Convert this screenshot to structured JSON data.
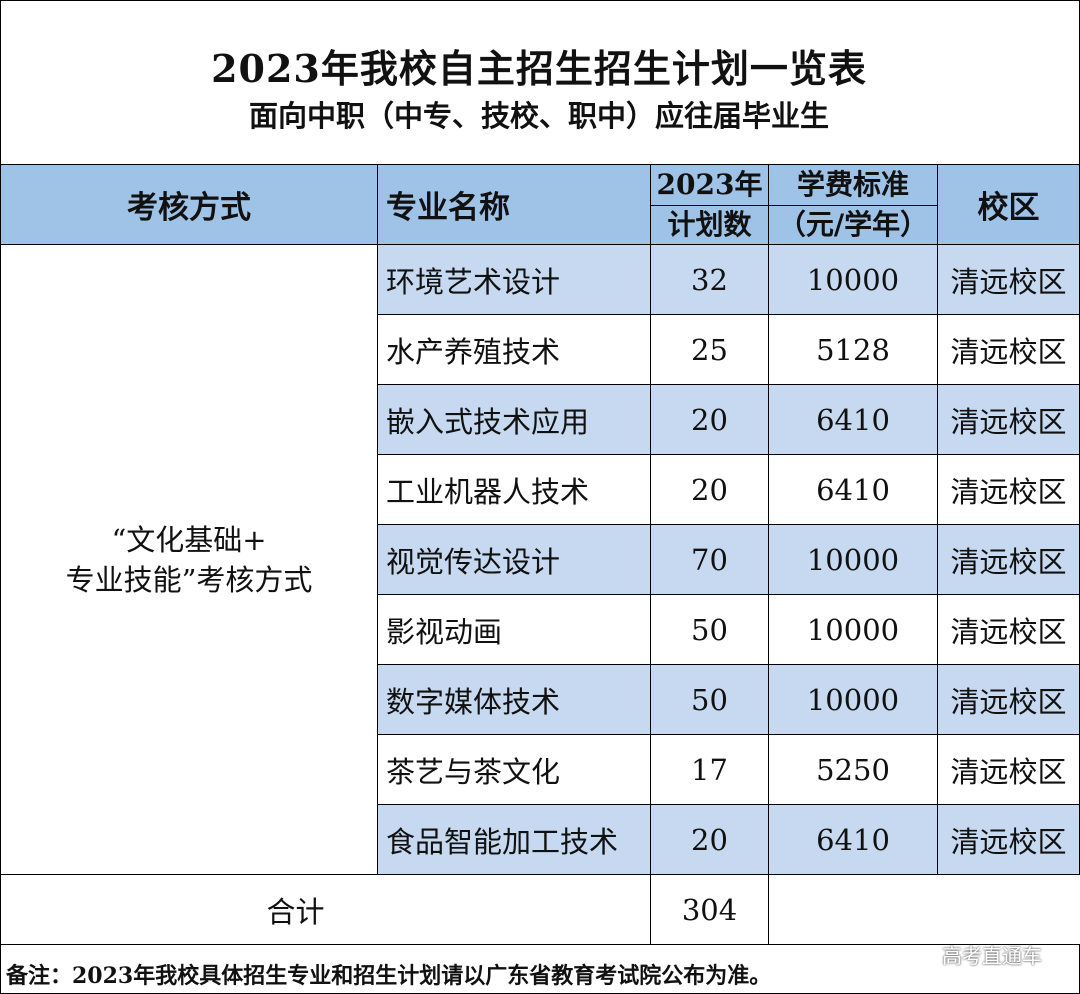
{
  "title": "2023年我校自主招生招生计划一览表",
  "subtitle": "面向中职（中专、技校、职中）应往届毕业生",
  "header": {
    "method": "考核方式",
    "major": "专业名称",
    "plan_line1": "2023年",
    "plan_line2": "计划数",
    "fee_line1": "学费标准",
    "fee_line2": "（元/学年）",
    "campus": "校区"
  },
  "method_label_line1": "“文化基础+",
  "method_label_line2": "专业技能”考核方式",
  "rows": [
    {
      "major": "环境艺术设计",
      "plan": "32",
      "fee": "10000",
      "campus": "清远校区"
    },
    {
      "major": "水产养殖技术",
      "plan": "25",
      "fee": "5128",
      "campus": "清远校区"
    },
    {
      "major": "嵌入式技术应用",
      "plan": "20",
      "fee": "6410",
      "campus": "清远校区"
    },
    {
      "major": "工业机器人技术",
      "plan": "20",
      "fee": "6410",
      "campus": "清远校区"
    },
    {
      "major": "视觉传达设计",
      "plan": "70",
      "fee": "10000",
      "campus": "清远校区"
    },
    {
      "major": "影视动画",
      "plan": "50",
      "fee": "10000",
      "campus": "清远校区"
    },
    {
      "major": "数字媒体技术",
      "plan": "50",
      "fee": "10000",
      "campus": "清远校区"
    },
    {
      "major": "茶艺与茶文化",
      "plan": "17",
      "fee": "5250",
      "campus": "清远校区"
    },
    {
      "major": "食品智能加工技术",
      "plan": "20",
      "fee": "6410",
      "campus": "清远校区"
    }
  ],
  "total": {
    "label": "合计",
    "plan": "304"
  },
  "note": "备注：2023年我校具体招生专业和招生计划请以广东省教育考试院公布为准。",
  "watermark": "高考直通车",
  "colors": {
    "header_bg": "#9fc2e7",
    "row_shade": "#c6d9f0"
  }
}
